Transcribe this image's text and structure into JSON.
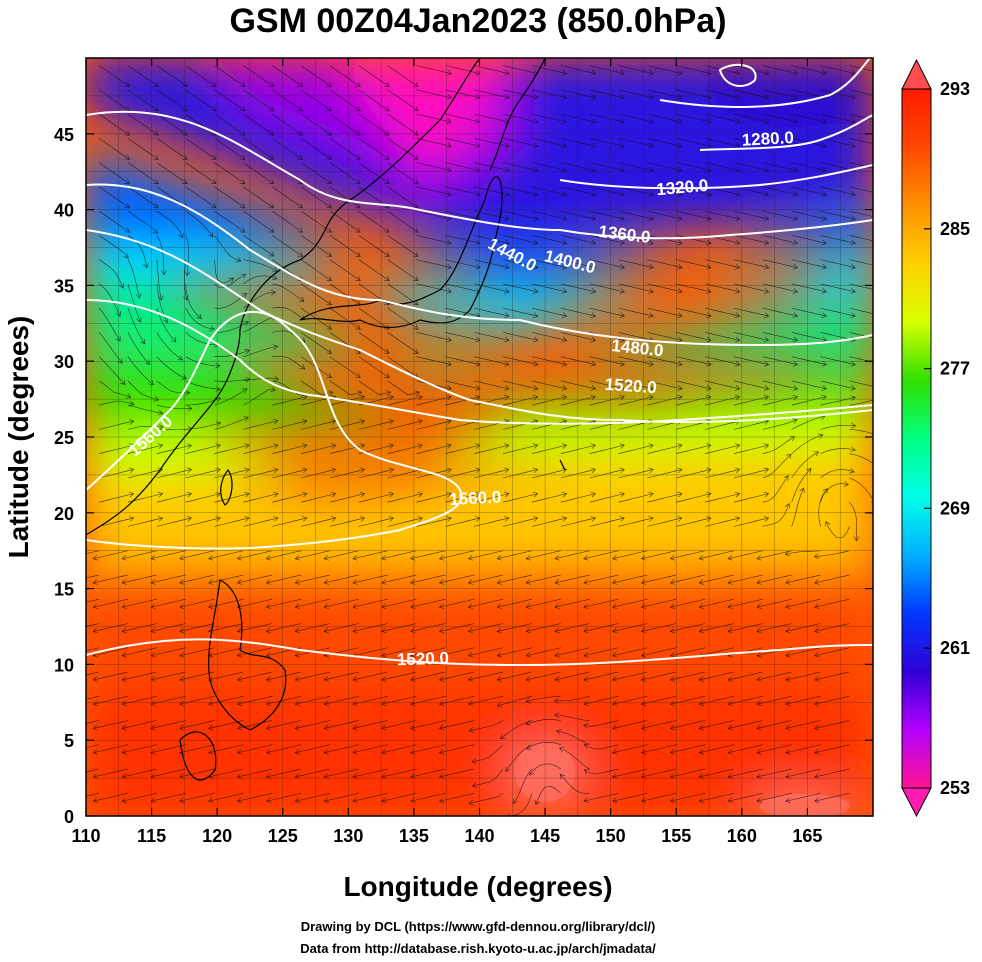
{
  "title": "GSM 00Z04Jan2023 (850.0hPa)",
  "xlabel": "Longitude (degrees)",
  "ylabel": "Latitude  (degrees)",
  "credits": [
    "Drawing by DCL (https://www.gfd-dennou.org/library/dcl/)",
    "Data from http://database.rish.kyoto-u.ac.jp/arch/jmadata/"
  ],
  "map": {
    "lon_range": [
      110,
      170
    ],
    "lat_range": [
      0,
      50
    ],
    "x_ticks": [
      "110",
      "115",
      "120",
      "125",
      "130",
      "135",
      "140",
      "145",
      "150",
      "155",
      "160",
      "165"
    ],
    "y_ticks": [
      "0",
      "5",
      "10",
      "15",
      "20",
      "25",
      "30",
      "35",
      "40",
      "45"
    ],
    "shading_variable": "temperature",
    "colorbar": {
      "ticks": [
        "293",
        "285",
        "277",
        "269",
        "261",
        "253"
      ],
      "min": 253,
      "max": 293,
      "colors": [
        "#ff1493",
        "#b400ff",
        "#2f00d8",
        "#0038ff",
        "#00b0ff",
        "#00ffe8",
        "#00ff80",
        "#30e000",
        "#d8ff00",
        "#ffd000",
        "#ff9000",
        "#ff4800",
        "#ff1a00"
      ]
    },
    "contour_labels": [
      {
        "text": "1280.0",
        "lon": 162.0,
        "lat": 44.3,
        "angle": -3
      },
      {
        "text": "1320.0",
        "lon": 155.5,
        "lat": 41.1,
        "angle": -5
      },
      {
        "text": "1360.0",
        "lon": 151.0,
        "lat": 38.0,
        "angle": 7
      },
      {
        "text": "1400.0",
        "lon": 146.8,
        "lat": 36.2,
        "angle": 14
      },
      {
        "text": "1440.0",
        "lon": 142.3,
        "lat": 36.7,
        "angle": 28
      },
      {
        "text": "1480.0",
        "lon": 152.0,
        "lat": 30.5,
        "angle": 6
      },
      {
        "text": "1520.0",
        "lon": 151.5,
        "lat": 28.0,
        "angle": 4
      },
      {
        "text": "1560.0",
        "lon": 115.2,
        "lat": 24.8,
        "angle": -42
      },
      {
        "text": "1560.0",
        "lon": 139.7,
        "lat": 20.6,
        "angle": -3
      },
      {
        "text": "1520.0",
        "lon": 135.7,
        "lat": 10.0,
        "angle": -2
      }
    ]
  }
}
